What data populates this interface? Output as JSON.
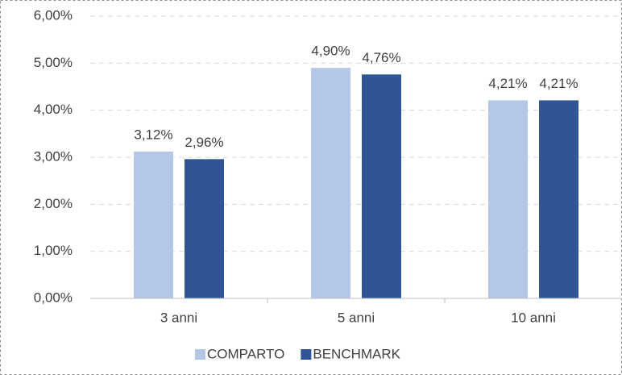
{
  "chart_data": {
    "type": "bar",
    "categories": [
      "3 anni",
      "5 anni",
      "10 anni"
    ],
    "series": [
      {
        "name": "COMPARTO",
        "color": "#b4c7e7",
        "values": [
          3.12,
          4.9,
          4.21
        ],
        "value_labels": [
          "3,12%",
          "4,90%",
          "4,21%"
        ]
      },
      {
        "name": "BENCHMARK",
        "color": "#2f5597",
        "values": [
          2.96,
          4.76,
          4.21
        ],
        "value_labels": [
          "2,96%",
          "4,76%",
          "4,21%"
        ]
      }
    ],
    "ylim": [
      0,
      6
    ],
    "yticks": [
      {
        "value": 0,
        "label": "0,00%"
      },
      {
        "value": 1,
        "label": "1,00%"
      },
      {
        "value": 2,
        "label": "2,00%"
      },
      {
        "value": 3,
        "label": "3,00%"
      },
      {
        "value": 4,
        "label": "4,00%"
      },
      {
        "value": 5,
        "label": "5,00%"
      },
      {
        "value": 6,
        "label": "6,00%"
      }
    ],
    "grid": true,
    "legend": "bottom"
  }
}
